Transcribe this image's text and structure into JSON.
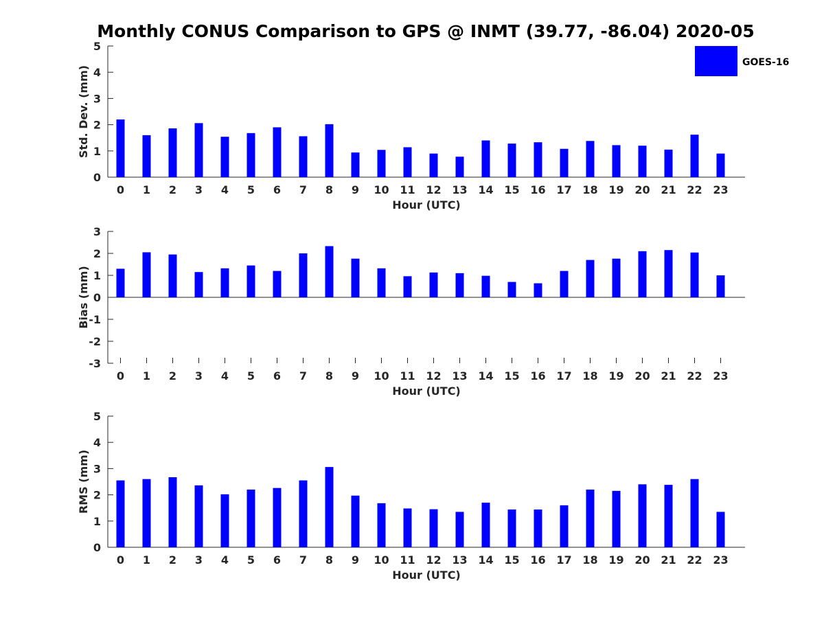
{
  "chart_data": {
    "type": "bar",
    "title": "Monthly CONUS Comparison to GPS @ INMT (39.77, -86.04) 2020-05",
    "legend": {
      "label": "GOES-16",
      "color": "#0000ff",
      "placement": "top-right"
    },
    "categories": [
      "0",
      "1",
      "2",
      "3",
      "4",
      "5",
      "6",
      "7",
      "8",
      "9",
      "10",
      "11",
      "12",
      "13",
      "14",
      "15",
      "16",
      "17",
      "18",
      "19",
      "20",
      "21",
      "22",
      "23"
    ],
    "panels": [
      {
        "xlabel": "Hour (UTC)",
        "ylabel": "Std. Dev. (mm)",
        "ylim": [
          0,
          5
        ],
        "yticks": [
          "0",
          "1",
          "2",
          "3",
          "4",
          "5"
        ],
        "series": [
          {
            "name": "GOES-16",
            "values": [
              2.2,
              1.6,
              1.86,
              2.06,
              1.54,
              1.68,
              1.9,
              1.56,
              2.02,
              0.94,
              1.04,
              1.14,
              0.9,
              0.78,
              1.4,
              1.28,
              1.33,
              1.08,
              1.38,
              1.22,
              1.2,
              1.05,
              1.62,
              0.9
            ]
          }
        ]
      },
      {
        "xlabel": "Hour (UTC)",
        "ylabel": "Bias (mm)",
        "ylim": [
          -3,
          3
        ],
        "yticks": [
          "-3",
          "-2",
          "-1",
          "0",
          "1",
          "2",
          "3"
        ],
        "series": [
          {
            "name": "GOES-16",
            "values": [
              1.3,
              2.05,
              1.95,
              1.15,
              1.32,
              1.45,
              1.2,
              2.0,
              2.33,
              1.76,
              1.32,
              0.96,
              1.13,
              1.1,
              0.98,
              0.7,
              0.64,
              1.2,
              1.7,
              1.76,
              2.1,
              2.15,
              2.04,
              1.0
            ]
          }
        ]
      },
      {
        "xlabel": "Hour (UTC)",
        "ylabel": "RMS (mm)",
        "ylim": [
          0,
          5
        ],
        "yticks": [
          "0",
          "1",
          "2",
          "3",
          "4",
          "5"
        ],
        "series": [
          {
            "name": "GOES-16",
            "values": [
              2.55,
              2.6,
              2.67,
              2.36,
              2.02,
              2.2,
              2.26,
              2.55,
              3.06,
              1.97,
              1.68,
              1.48,
              1.45,
              1.35,
              1.7,
              1.44,
              1.44,
              1.6,
              2.2,
              2.15,
              2.4,
              2.38,
              2.6,
              1.35
            ]
          }
        ]
      }
    ]
  }
}
